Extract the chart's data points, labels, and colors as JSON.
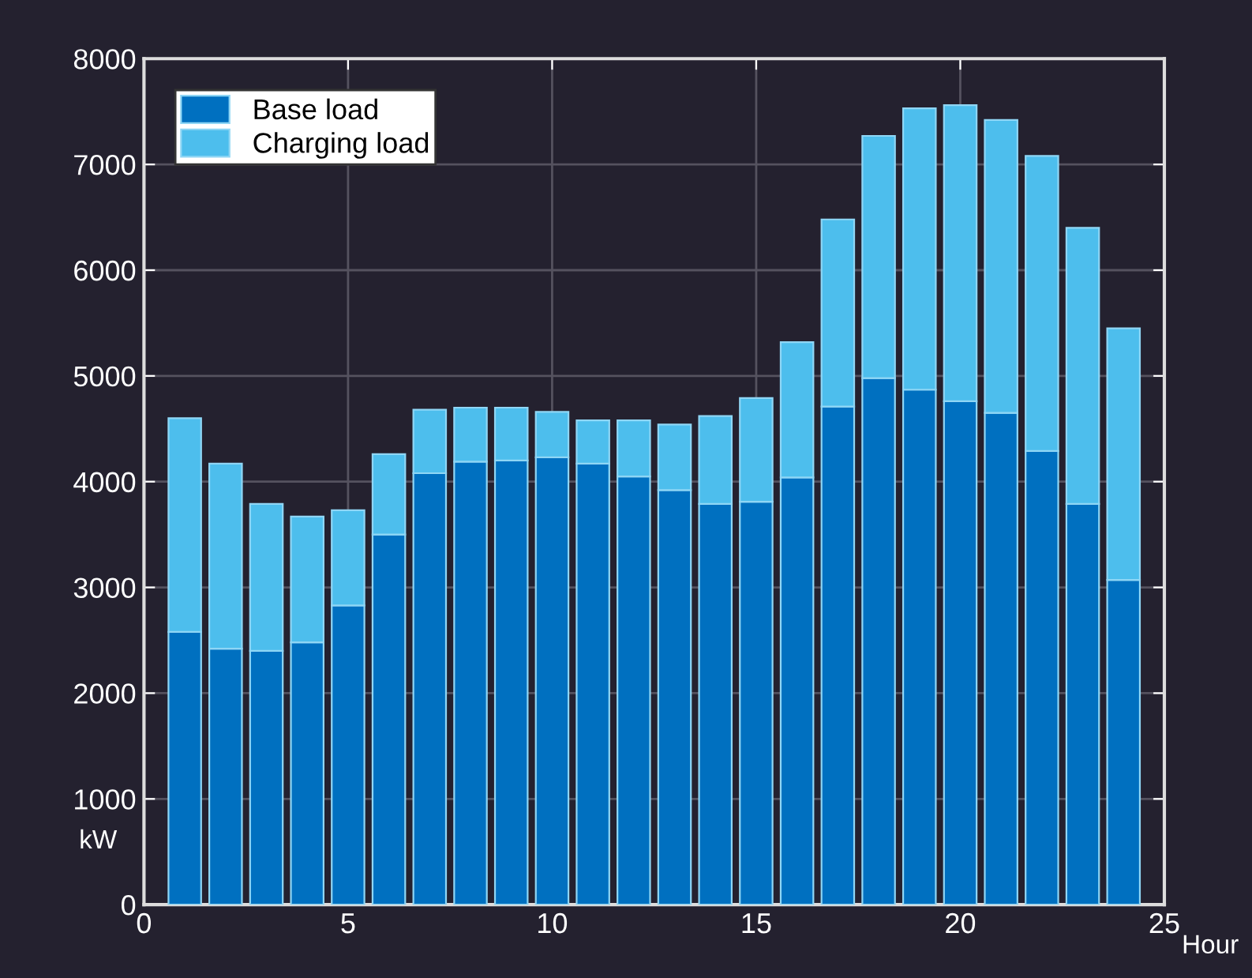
{
  "chart_data": {
    "type": "bar",
    "stacked": true,
    "xlabel": "Hour",
    "ylabel": "kW",
    "x": [
      1,
      2,
      3,
      4,
      5,
      6,
      7,
      8,
      9,
      10,
      11,
      12,
      13,
      14,
      15,
      16,
      17,
      18,
      19,
      20,
      21,
      22,
      23,
      24
    ],
    "series": [
      {
        "name": "Base load",
        "color": "#0070c0",
        "values": [
          2580,
          2420,
          2400,
          2480,
          2830,
          3500,
          4080,
          4190,
          4200,
          4230,
          4170,
          4050,
          3920,
          3790,
          3810,
          4040,
          4710,
          4980,
          4870,
          4760,
          4650,
          4290,
          3790,
          3070
        ]
      },
      {
        "name": "Charging load",
        "color": "#4dbeed",
        "values": [
          2020,
          1750,
          1390,
          1190,
          900,
          760,
          600,
          510,
          500,
          430,
          410,
          530,
          620,
          830,
          980,
          1280,
          1770,
          2290,
          2660,
          2800,
          2770,
          2790,
          2610,
          2380
        ]
      }
    ],
    "xlim": [
      0,
      25
    ],
    "xticks": [
      0,
      5,
      10,
      15,
      20,
      25
    ],
    "ylim": [
      0,
      8000
    ],
    "yticks": [
      0,
      1000,
      2000,
      3000,
      4000,
      5000,
      6000,
      7000,
      8000
    ],
    "grid": true,
    "legend": "top left"
  }
}
